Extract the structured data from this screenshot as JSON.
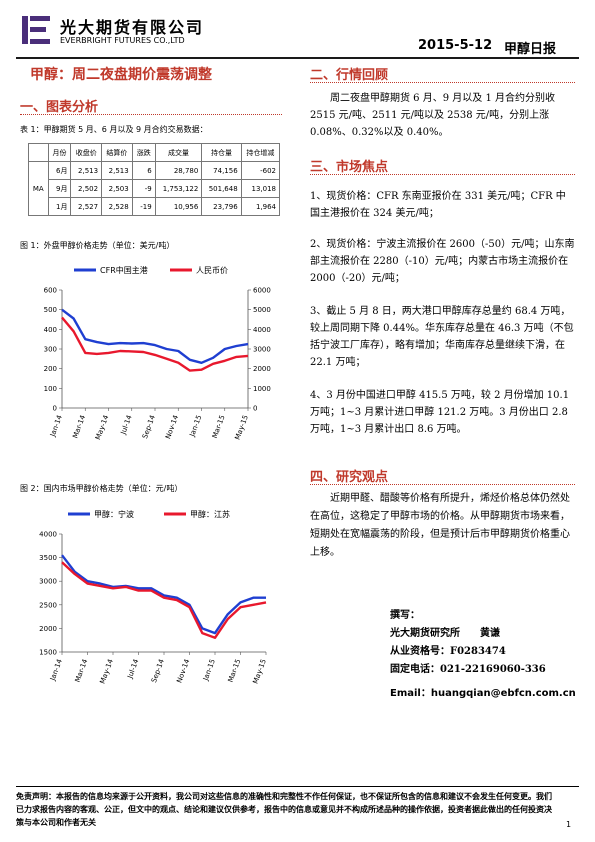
{
  "header": {
    "company_cn": "光大期货有限公司",
    "company_en": "EVERBRIGHT FUTURES CO.,LTD",
    "date": "2015-5-12",
    "report_name": "甲醇日报"
  },
  "title": "甲醇：周二夜盘期价震荡调整",
  "left": {
    "section1": "一、图表分析",
    "table_caption": "表 1：甲醇期货 5 月、6 月以及 9 月合约交易数据：",
    "table": {
      "headers": [
        "月份",
        "收盘价",
        "结算价",
        "涨跌",
        "成交量",
        "持仓量",
        "持仓增减"
      ],
      "group": "MA",
      "rows": [
        [
          "6月",
          "2,513",
          "2,513",
          "6",
          "28,780",
          "74,156",
          "-602"
        ],
        [
          "9月",
          "2,502",
          "2,503",
          "-9",
          "1,753,122",
          "501,648",
          "13,018"
        ],
        [
          "1月",
          "2,527",
          "2,528",
          "-19",
          "10,956",
          "23,796",
          "1,964"
        ]
      ]
    },
    "fig1_caption": "图 1：外盘甲醇价格走势（单位：美元/吨）",
    "fig2_caption": "图 2：国内市场甲醇价格走势（单位：元/吨）"
  },
  "right": {
    "section2": "二、行情回顾",
    "review": "周二夜盘甲醇期货 6 月、9 月以及 1 月合约分别收 2515 元/吨、2511 元/吨以及 2538 元/吨，分别上涨 0.08%、0.32%以及 0.40%。",
    "section3": "三、市场焦点",
    "focus": [
      "1、现货价格：CFR 东南亚报价在 331 美元/吨；CFR 中国主港报价在 324 美元/吨；",
      "2、现货价格：宁波主流报价在 2600（-50）元/吨；山东南部主流报价在 2280（-10）元/吨；内蒙古市场主流报价在 2000（-20）元/吨；",
      "3、截止 5 月 8 日，两大港口甲醇库存总量约 68.4 万吨，较上周同期下降 0.44%。华东库存总量在 46.3 万吨（不包括宁波工厂库存），略有增加；华南库存总量继续下滑，在 22.1 万吨；",
      "4、3 月份中国进口甲醇 415.5 万吨，较 2 月份增加 10.1 万吨；1~3 月累计进口甲醇 121.2 万吨。3 月份出口 2.8 万吨，1~3 月累计出口 8.6 万吨。"
    ],
    "section4": "四、研究观点",
    "opinion": "近期甲醛、醋酸等价格有所提升，烯烃价格总体仍然处在高位，这稳定了甲醇市场的价格。从甲醇期货市场来看，短期处在宽幅震荡的阶段，但是预计后市甲醇期货价格重心上移。",
    "author_label": "撰写：",
    "author_line": "光大期货研究所　　黄谦",
    "qual": "从业资格号：F0283474",
    "phone": "固定电话：021-22169060-336",
    "email": "Email：huangqian@ebfcn.com.cn"
  },
  "footer": {
    "disclaimer": "免责声明：本报告的信息均来源于公开资料，我公司对这些信息的准确性和完整性不作任何保证，也不保证所包含的信息和建议不会发生任何变更。我们已力求报告内容的客观、公正，但文中的观点、结论和建议仅供参考，报告中的信息或意见并不构成所述品种的操作依据，投资者据此做出的任何投资决策与本公司和作者无关",
    "page": "1"
  },
  "chart_data": [
    {
      "type": "line",
      "categories": [
        "Jan-14",
        "Mar-14",
        "May-14",
        "Jul-14",
        "Sep-14",
        "Nov-14",
        "Jan-15",
        "Mar-15",
        "May-15"
      ],
      "series": [
        {
          "name": "CFR中国主港",
          "axis": "left",
          "color": "#1f3fd1",
          "x": [
            0,
            1,
            2,
            3,
            4,
            5,
            6,
            7,
            8,
            9,
            10,
            11,
            12,
            13,
            14,
            15,
            16
          ],
          "values": [
            500,
            455,
            350,
            335,
            325,
            330,
            328,
            330,
            320,
            300,
            290,
            245,
            230,
            255,
            300,
            315,
            325
          ]
        },
        {
          "name": "人民币价",
          "axis": "right",
          "color": "#e8182d",
          "x": [
            0,
            1,
            2,
            3,
            4,
            5,
            6,
            7,
            8,
            9,
            10,
            11,
            12,
            13,
            14,
            15,
            16
          ],
          "values": [
            4600,
            3900,
            2800,
            2750,
            2800,
            2900,
            2880,
            2850,
            2700,
            2500,
            2300,
            1900,
            1950,
            2250,
            2400,
            2600,
            2650
          ]
        }
      ],
      "yleft": [
        0,
        600
      ],
      "yright": [
        0,
        6000
      ]
    },
    {
      "type": "line",
      "categories": [
        "Jan-14",
        "Mar-14",
        "May-14",
        "Jul-14",
        "Sep-14",
        "Nov-14",
        "Jan-15",
        "Mar-15",
        "May-15"
      ],
      "series": [
        {
          "name": "甲醇：宁波",
          "color": "#1f3fd1",
          "x": [
            0,
            1,
            2,
            3,
            4,
            5,
            6,
            7,
            8,
            9,
            10,
            11,
            12,
            13,
            14,
            15,
            16
          ],
          "values": [
            3550,
            3200,
            3000,
            2950,
            2880,
            2900,
            2850,
            2850,
            2700,
            2650,
            2500,
            2000,
            1900,
            2300,
            2550,
            2650,
            2650
          ]
        },
        {
          "name": "甲醇：江苏",
          "color": "#e8182d",
          "x": [
            0,
            1,
            2,
            3,
            4,
            5,
            6,
            7,
            8,
            9,
            10,
            11,
            12,
            13,
            14,
            15,
            16
          ],
          "values": [
            3400,
            3150,
            2950,
            2900,
            2850,
            2880,
            2800,
            2800,
            2650,
            2600,
            2450,
            1900,
            1800,
            2200,
            2450,
            2500,
            2550
          ]
        }
      ],
      "ylim": [
        1500,
        4000
      ]
    }
  ]
}
